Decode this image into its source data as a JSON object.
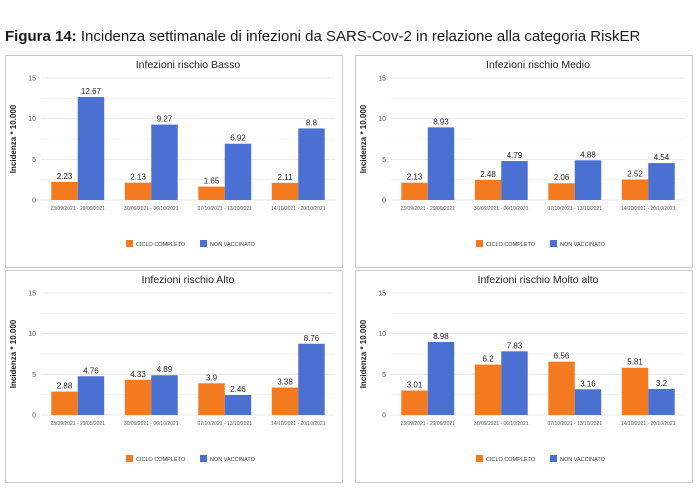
{
  "figure": {
    "label": "Figura 14:",
    "caption": "Incidenza settimanale di infezioni da SARS-Cov-2 in relazione alla categoria RiskER"
  },
  "colors": {
    "ciclo_completo": "#f47a1f",
    "non_vaccinato": "#4a70d2",
    "grid": "#e3e3e3",
    "border": "#c8c8c8"
  },
  "chart_data": [
    {
      "type": "bar",
      "title": "Infezioni rischio Basso",
      "ylabel": "Incidenza * 10.000",
      "xlabel": "",
      "ylim": [
        0,
        15
      ],
      "yticks": [
        "0",
        "5",
        "10",
        "15"
      ],
      "categories": [
        "23/09/2021 - 29/09/2021",
        "30/09/2021 - 06/10/2021",
        "07/10/2021 - 13/10/2021",
        "14/10/2021 - 20/10/2021"
      ],
      "series": [
        {
          "name": "CICLO COMPLETO",
          "values": [
            2.23,
            2.13,
            1.65,
            2.11
          ],
          "labels": [
            "2.23",
            "2.13",
            "1.65",
            "2.11"
          ]
        },
        {
          "name": "NON VACCINATO",
          "values": [
            12.67,
            9.27,
            6.92,
            8.8
          ],
          "labels": [
            "12.67",
            "9.27",
            "6.92",
            "8.8"
          ]
        }
      ],
      "legend": "bottom",
      "grid": true
    },
    {
      "type": "bar",
      "title": "Infezioni rischio Medio",
      "ylabel": "Incidenza * 10.000",
      "xlabel": "",
      "ylim": [
        0,
        15
      ],
      "yticks": [
        "0",
        "5",
        "10",
        "15"
      ],
      "categories": [
        "23/09/2021 - 29/09/2021",
        "30/09/2021 - 06/10/2021",
        "07/10/2021 - 13/10/2021",
        "14/10/2021 - 20/10/2021"
      ],
      "series": [
        {
          "name": "CICLO COMPLETO",
          "values": [
            2.13,
            2.48,
            2.06,
            2.52
          ],
          "labels": [
            "2.13",
            "2.48",
            "2.06",
            "2.52"
          ]
        },
        {
          "name": "NON VACCINATO",
          "values": [
            8.93,
            4.79,
            4.88,
            4.54
          ],
          "labels": [
            "8.93",
            "4.79",
            "4.88",
            "4.54"
          ]
        }
      ],
      "legend": "bottom",
      "grid": true
    },
    {
      "type": "bar",
      "title": "Infezioni rischio Alto",
      "ylabel": "Incidenza * 10.000",
      "xlabel": "",
      "ylim": [
        0,
        15
      ],
      "yticks": [
        "0",
        "5",
        "10",
        "15"
      ],
      "categories": [
        "23/09/2021 - 29/09/2021",
        "30/09/2021 - 06/10/2021",
        "07/10/2021 - 13/10/2021",
        "14/10/2021 - 20/10/2021"
      ],
      "series": [
        {
          "name": "CICLO COMPLETO",
          "values": [
            2.88,
            4.33,
            3.9,
            3.38
          ],
          "labels": [
            "2.88",
            "4.33",
            "3.9",
            "3.38"
          ]
        },
        {
          "name": "NON VACCINATO",
          "values": [
            4.76,
            4.89,
            2.46,
            8.76
          ],
          "labels": [
            "4.76",
            "4.89",
            "2.46",
            "8.76"
          ]
        }
      ],
      "legend": "bottom",
      "grid": true
    },
    {
      "type": "bar",
      "title": "Infezioni rischio Molto alto",
      "ylabel": "Incidenza * 10.000",
      "xlabel": "",
      "ylim": [
        0,
        15
      ],
      "yticks": [
        "0",
        "5",
        "10",
        "15"
      ],
      "categories": [
        "23/09/2021 - 29/09/2021",
        "30/09/2021 - 06/10/2021",
        "07/10/2021 - 13/10/2021",
        "14/10/2021 - 20/10/2021"
      ],
      "series": [
        {
          "name": "CICLO COMPLETO",
          "values": [
            3.01,
            6.2,
            6.56,
            5.81
          ],
          "labels": [
            "3.01",
            "6.2",
            "6.56",
            "5.81"
          ]
        },
        {
          "name": "NON VACCINATO",
          "values": [
            8.98,
            7.83,
            3.16,
            3.2
          ],
          "labels": [
            "8.98",
            "7.83",
            "3.16",
            "3.2"
          ]
        }
      ],
      "legend": "bottom",
      "grid": true
    }
  ]
}
